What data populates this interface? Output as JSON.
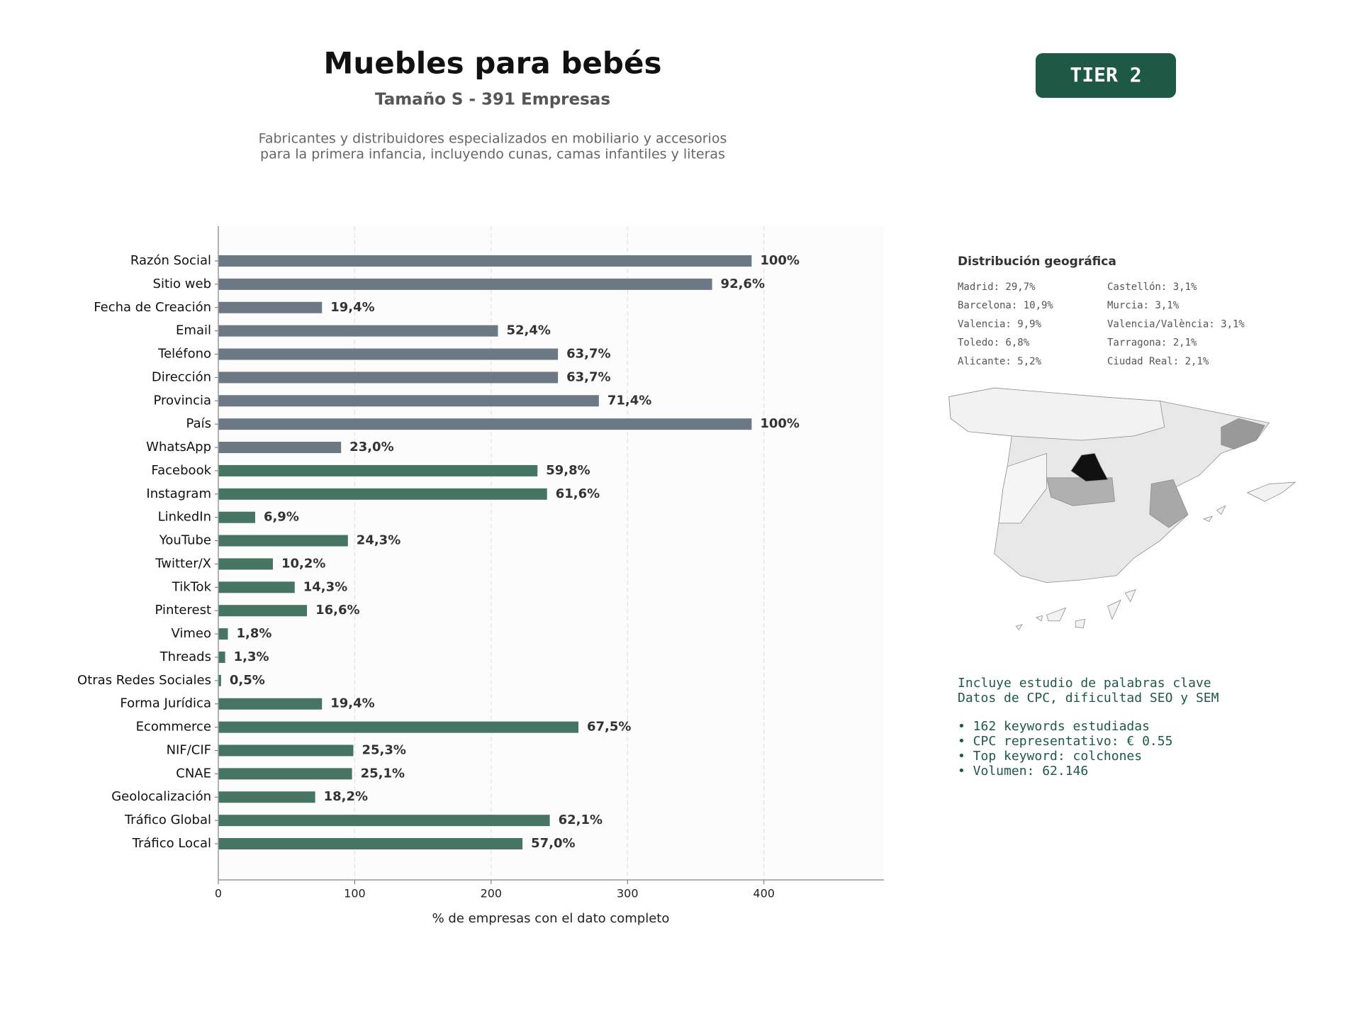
{
  "chart_data": {
    "type": "bar",
    "orientation": "horizontal",
    "title": "Muebles para bebés",
    "subtitle": "Tamaño S - 391 Empresas",
    "description": [
      "Fabricantes y distribuidores especializados en mobiliario y accesorios",
      "para la primera infancia, incluyendo cunas, camas infantiles y literas"
    ],
    "categories": [
      "Razón Social",
      "Sitio web",
      "Fecha de Creación",
      "Email",
      "Teléfono",
      "Dirección",
      "Provincia",
      "País",
      "WhatsApp",
      "Facebook",
      "Instagram",
      "LinkedIn",
      "YouTube",
      "Twitter/X",
      "TikTok",
      "Pinterest",
      "Vimeo",
      "Threads",
      "Otras Redes Sociales",
      "Forma Jurídica",
      "Ecommerce",
      "NIF/CIF",
      "CNAE",
      "Geolocalización",
      "Tráfico Global",
      "Tráfico Local"
    ],
    "values": [
      391,
      362,
      76,
      205,
      249,
      249,
      279,
      391,
      90,
      234,
      241,
      27,
      95,
      40,
      56,
      65,
      7,
      5,
      2,
      76,
      264,
      99,
      98,
      71,
      243,
      223
    ],
    "value_labels": [
      "100%",
      "92,6%",
      "19,4%",
      "52,4%",
      "63,7%",
      "63,7%",
      "71,4%",
      "100%",
      "23,0%",
      "59,8%",
      "61,6%",
      "6,9%",
      "24,3%",
      "10,2%",
      "14,3%",
      "16,6%",
      "1,8%",
      "1,3%",
      "0,5%",
      "19,4%",
      "67,5%",
      "25,3%",
      "25,1%",
      "18,2%",
      "62,1%",
      "57,0%"
    ],
    "colors": [
      "#6c7883",
      "#6c7883",
      "#6c7883",
      "#6c7883",
      "#6c7883",
      "#6c7883",
      "#6c7883",
      "#6c7883",
      "#6c7883",
      "#467564",
      "#467564",
      "#467564",
      "#467564",
      "#467564",
      "#467564",
      "#467564",
      "#467564",
      "#467564",
      "#467564",
      "#467564",
      "#467564",
      "#467564",
      "#467564",
      "#467564",
      "#467564",
      "#467564"
    ],
    "xlim": [
      0,
      488
    ],
    "xticks": [
      0,
      100,
      200,
      300,
      400
    ],
    "xlabel": "% de empresas con el dato completo",
    "grid": true
  },
  "badge": "TIER 2",
  "geo": {
    "title": "Distribución geográfica",
    "items": [
      "Madrid: 29,7%",
      "Barcelona: 10,9%",
      "Valencia: 9,9%",
      "Toledo: 6,8%",
      "Alicante: 5,2%",
      "Castellón: 3,1%",
      "Murcia: 3,1%",
      "Valencia/València: 3,1%",
      "Tarragona: 2,1%",
      "Ciudad Real: 2,1%"
    ]
  },
  "keywords": {
    "intro": [
      "Incluye estudio de palabras clave",
      "Datos de CPC, dificultad SEO y SEM"
    ],
    "bullets": [
      "• 162 keywords estudiadas",
      "• CPC representativo: € 0.55",
      "• Top keyword: colchones",
      "• Volumen: 62.146"
    ]
  }
}
